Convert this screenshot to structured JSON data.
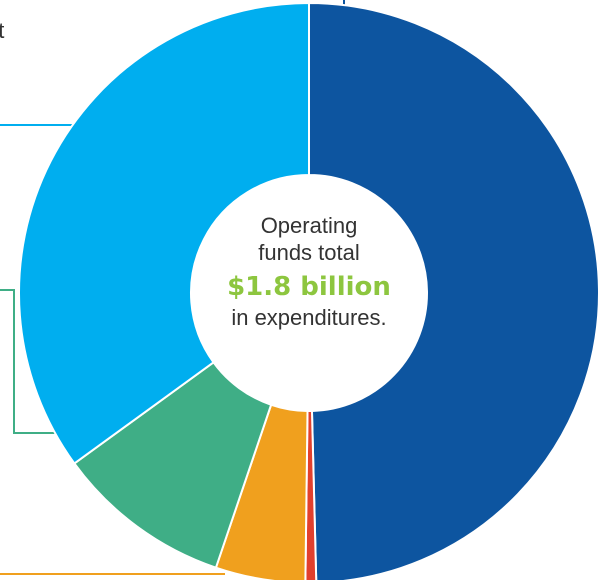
{
  "partial_text": "ot",
  "center": {
    "line1": "Operating",
    "line2": "funds total",
    "amount": "$1.8 billion",
    "line3": "in expenditures."
  },
  "colors": {
    "amount": "#8dc63f",
    "text": "#333333",
    "separator": "#ffffff",
    "hole": "#ffffff"
  },
  "chart_data": {
    "type": "pie",
    "variant": "donut",
    "title": "",
    "slices": [
      {
        "value": 49.6,
        "color": "#0d55a0"
      },
      {
        "value": 0.6,
        "color": "#e2402e"
      },
      {
        "value": 5.0,
        "color": "#f0a01e"
      },
      {
        "value": 9.8,
        "color": "#3fae86"
      },
      {
        "value": 35.0,
        "color": "#00aeef"
      }
    ],
    "leader_line_colors": [
      "#0d55a0",
      "#00aeef",
      "#3fae86",
      "#f0a01e"
    ]
  }
}
